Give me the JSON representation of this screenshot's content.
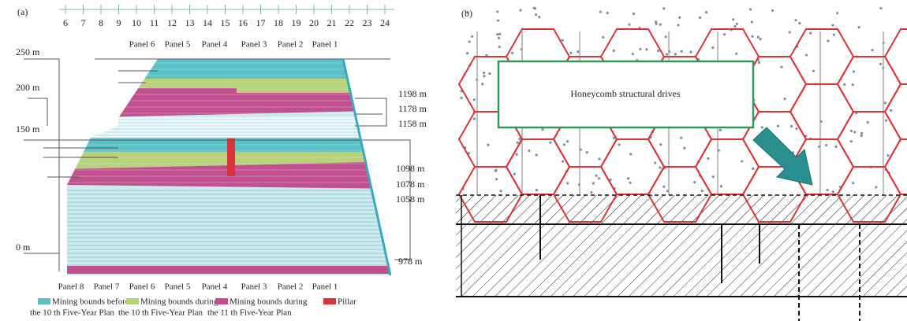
{
  "panel_a": {
    "label": "(a)",
    "columns": [
      "6",
      "7",
      "8",
      "9",
      "10",
      "11",
      "12",
      "13",
      "14",
      "15",
      "16",
      "17",
      "18",
      "19",
      "20",
      "21",
      "22",
      "23",
      "24"
    ],
    "top_panels": [
      "Panel 6",
      "Panel 5",
      "Panel 4",
      "Panel 3",
      "Panel 2",
      "Panel 1"
    ],
    "bottom_panels": [
      "Panel 8",
      "Panel 7",
      "Panel 6",
      "Panel 5",
      "Panel 4",
      "Panel 3",
      "Panel 2",
      "Panel 1"
    ],
    "left_levels": [
      "250 m",
      "200 m",
      "150 m",
      "0 m"
    ],
    "right_levels": [
      "1198 m",
      "1178 m",
      "1158 m",
      "1098 m",
      "1078 m",
      "1058 m",
      "978 m"
    ],
    "legend": [
      {
        "line1": "Mining bounds before",
        "line2": "the 10 th Five-Year Plan"
      },
      {
        "line1": "Mining bounds during",
        "line2": "the 10 th Five-Year Plan"
      },
      {
        "line1": "Mining bounds during",
        "line2": "the 11 th Five-Year Plan"
      },
      {
        "line1": "Pillar"
      }
    ]
  },
  "panel_b": {
    "label": "(b)",
    "box_text": "Honeycomb structural drives"
  }
}
